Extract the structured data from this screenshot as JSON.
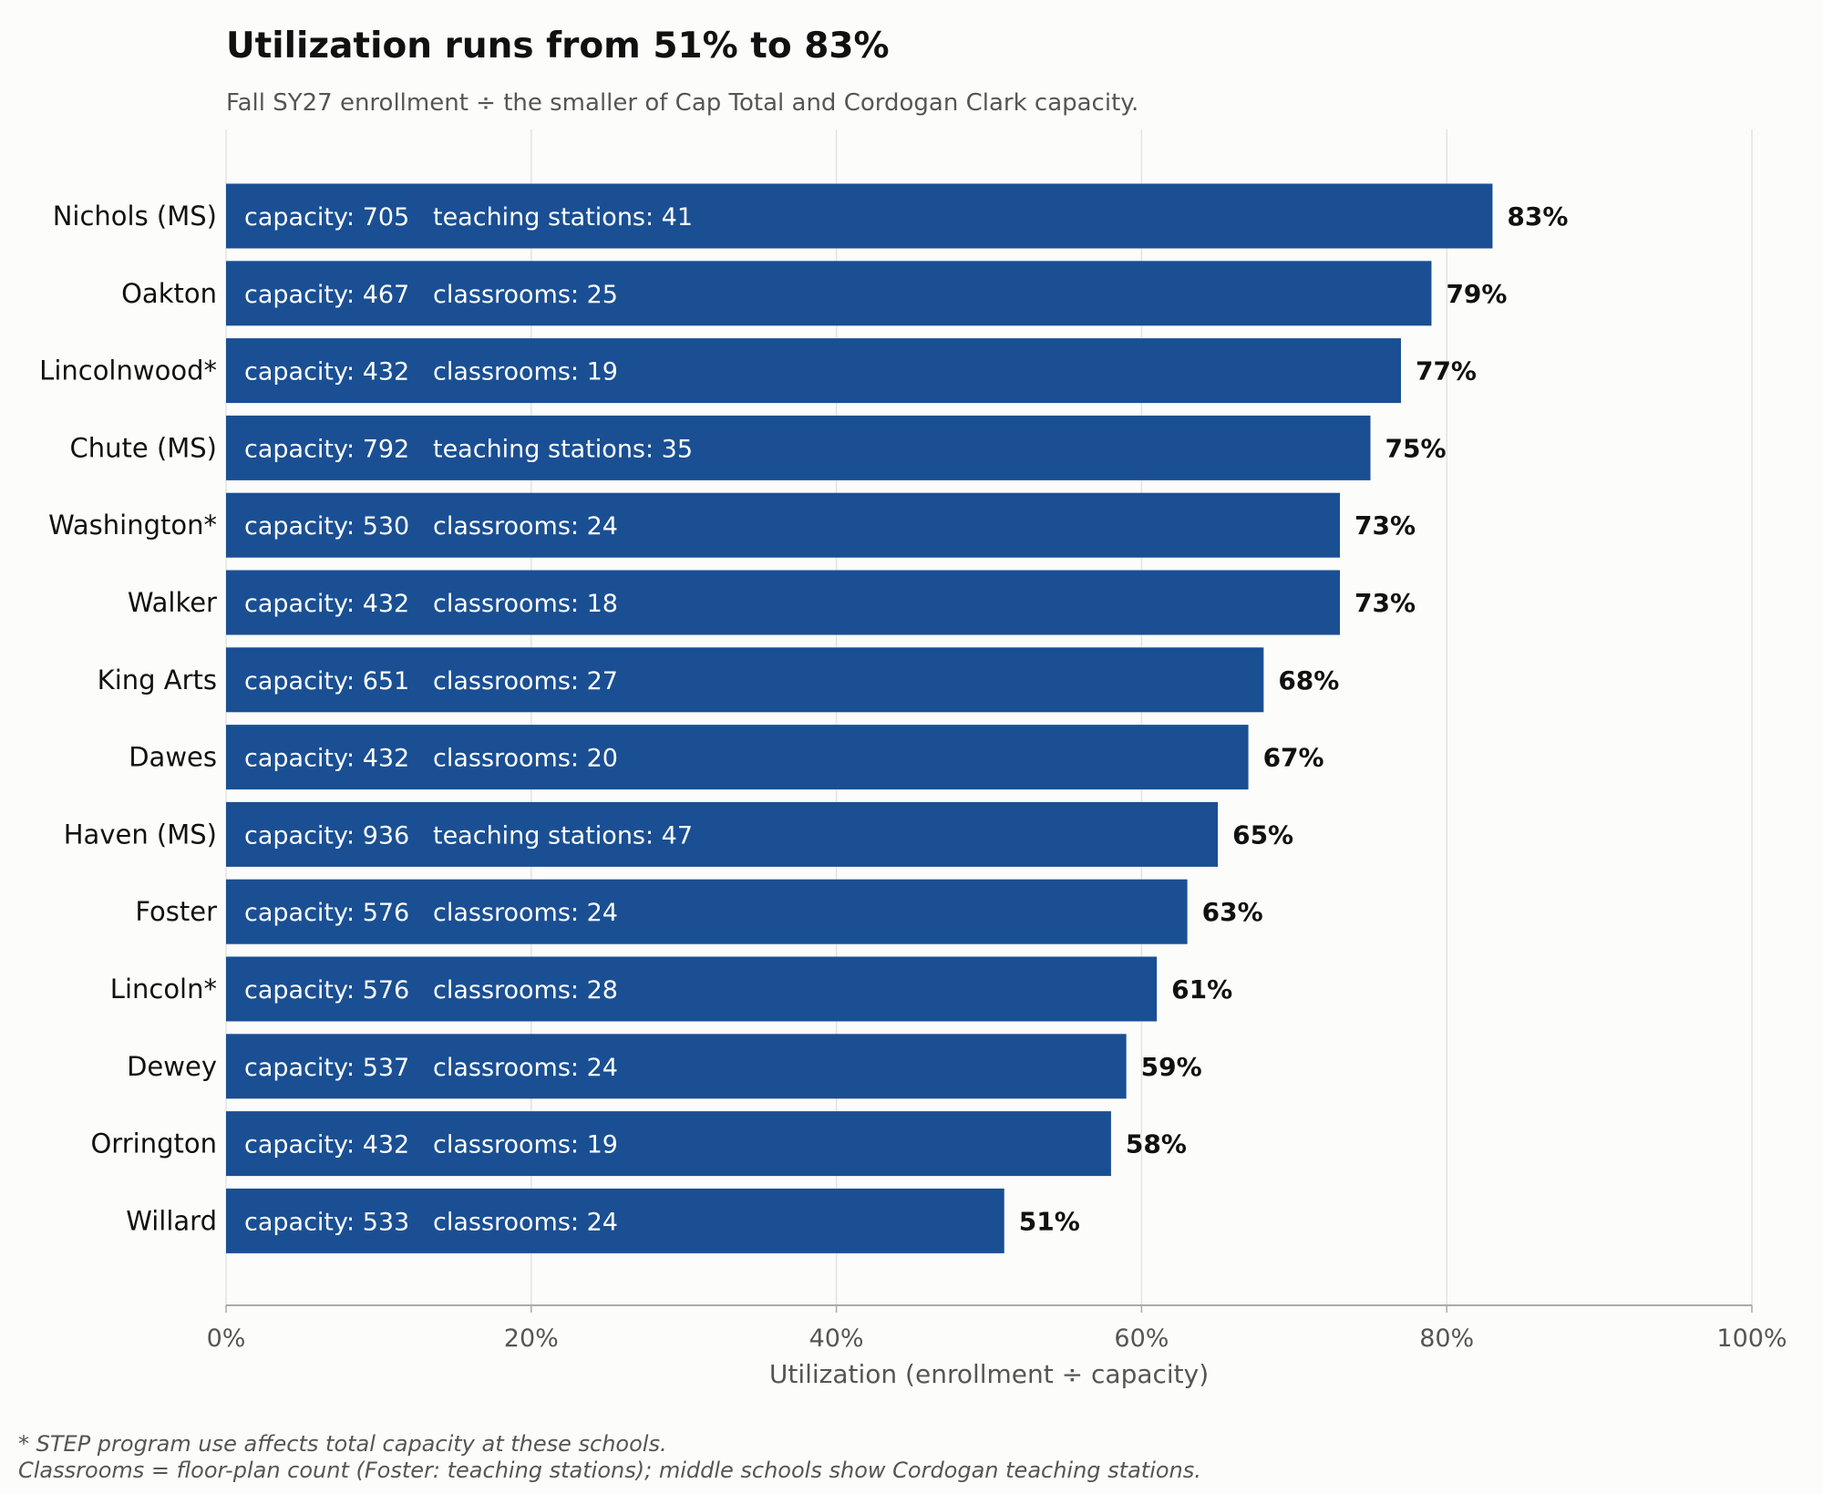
{
  "colors": {
    "bar": "#1a4f93",
    "background": "#fcfcfa",
    "grid": "#e3e3e3",
    "axis": "#aaaaaa",
    "text": "#111111",
    "muted": "#555555",
    "bar_label": "#ffffff"
  },
  "chart_data": {
    "type": "bar",
    "orientation": "horizontal",
    "title": "Utilization runs from 51% to 83%",
    "subtitle": "Fall SY27 enrollment ÷ the smaller of Cap Total and Cordogan Clark capacity.",
    "xlabel": "Utilization (enrollment ÷ capacity)",
    "xlim": [
      0,
      100
    ],
    "xticks": [
      0,
      20,
      40,
      60,
      80,
      100
    ],
    "xtick_labels": [
      "0%",
      "20%",
      "40%",
      "60%",
      "80%",
      "100%"
    ],
    "grid": "vertical",
    "value_suffix": "%",
    "categories": [
      "Nichols (MS)",
      "Oakton",
      "Lincolnwood*",
      "Chute (MS)",
      "Washington*",
      "Walker",
      "King Arts",
      "Dawes",
      "Haven (MS)",
      "Foster",
      "Lincoln*",
      "Dewey",
      "Orrington",
      "Willard"
    ],
    "values": [
      83,
      79,
      77,
      75,
      73,
      73,
      68,
      67,
      65,
      63,
      61,
      59,
      58,
      51
    ],
    "value_labels": [
      "83%",
      "79%",
      "77%",
      "75%",
      "73%",
      "73%",
      "68%",
      "67%",
      "65%",
      "63%",
      "61%",
      "59%",
      "58%",
      "51%"
    ],
    "bar_annotations": [
      "capacity: 705   teaching stations: 41",
      "capacity: 467   classrooms: 25",
      "capacity: 432   classrooms: 19",
      "capacity: 792   teaching stations: 35",
      "capacity: 530   classrooms: 24",
      "capacity: 432   classrooms: 18",
      "capacity: 651   classrooms: 27",
      "capacity: 432   classrooms: 20",
      "capacity: 936   teaching stations: 47",
      "capacity: 576   classrooms: 24",
      "capacity: 576   classrooms: 28",
      "capacity: 537   classrooms: 24",
      "capacity: 432   classrooms: 19",
      "capacity: 533   classrooms: 24"
    ]
  },
  "footnotes": [
    "* STEP program use affects total capacity at these schools.",
    "Classrooms = floor-plan count (Foster: teaching stations); middle schools show Cordogan teaching stations."
  ]
}
